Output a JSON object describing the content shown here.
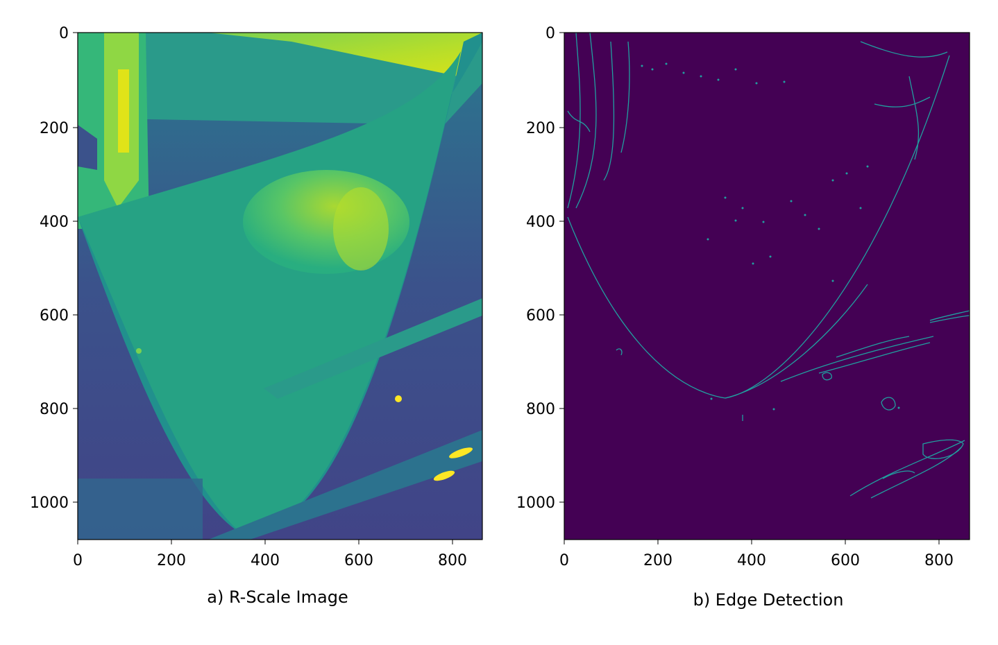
{
  "panels": [
    {
      "caption": "a) R-Scale Image",
      "x_ticks": [
        "0",
        "200",
        "400",
        "600",
        "800"
      ],
      "y_ticks": [
        "0",
        "200",
        "400",
        "600",
        "800",
        "1000"
      ],
      "colormap": "viridis",
      "image_kind": "grayscale-R-channel"
    },
    {
      "caption": "b) Edge Detection",
      "x_ticks": [
        "0",
        "200",
        "400",
        "600",
        "800"
      ],
      "y_ticks": [
        "0",
        "200",
        "400",
        "600",
        "800",
        "1000"
      ],
      "colormap": "viridis",
      "image_kind": "edge-map"
    }
  ],
  "colors": {
    "dark": "#440154",
    "mid_dark": "#3b528b",
    "mid": "#21908d",
    "mid_light": "#5dc963",
    "bright": "#fde725",
    "edge_line": "#21a0a0"
  }
}
